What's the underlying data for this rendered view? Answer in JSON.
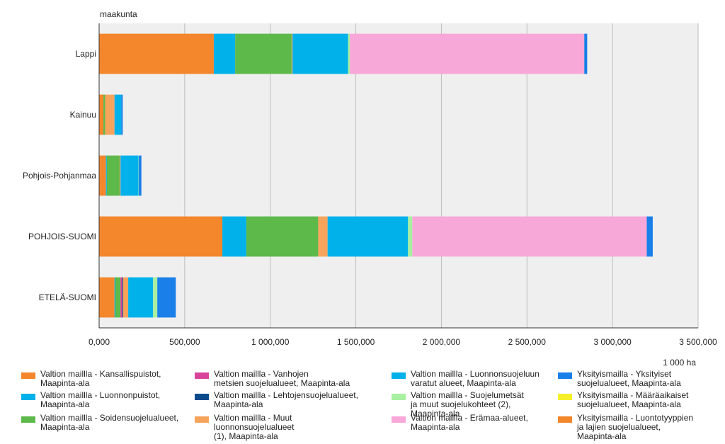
{
  "chart_data": {
    "type": "bar",
    "orientation": "horizontal",
    "stacked": true,
    "title": "",
    "ylabel": "maakunta",
    "xlabel": "1 000 ha",
    "xlim": [
      0,
      3500000
    ],
    "xticks": [
      0,
      500000,
      1000000,
      1500000,
      2000000,
      2500000,
      3000000,
      3500000
    ],
    "xtick_labels": [
      "0,000",
      "500,000",
      "1 000,000",
      "1 500,000",
      "2 000,000",
      "2 500,000",
      "3 000,000",
      "3 500,000"
    ],
    "grid": true,
    "legend_position": "bottom",
    "categories": [
      "Lappi",
      "Kainuu",
      "Pohjois-Pohjanmaa",
      "POHJOIS-SUOMI",
      "ETELÄ-SUOMI"
    ],
    "series": [
      {
        "name": "Valtion maillla - Kansallispuistot,\nMaapinta-ala",
        "label": "Valtion maillla - Kansallispuistot,\nMaapinta-ala",
        "color": "#f4862b",
        "values": [
          670000,
          25000,
          40000,
          720000,
          90000
        ]
      },
      {
        "name": "Valtion maillla - Luonnonpuistot,\nMaapinta-ala",
        "label": "Valtion maillla - Luonnonpuistot,\nMaapinta-ala",
        "color": "#00b1ea",
        "values": [
          125000,
          0,
          5000,
          140000,
          5000
        ]
      },
      {
        "name": "Valtion maillla - Soidensuojelualueet,\nMaapinta-ala",
        "label": "Valtion maillla - Soidensuojelualueet,\nMaapinta-ala",
        "color": "#5cb94a",
        "values": [
          330000,
          10000,
          75000,
          420000,
          30000
        ]
      },
      {
        "name": "Valtion maillla - Vanhojen\nmetsien suojelualueet, Maapinta-ala",
        "label": "Valtion maillla - Vanhojen\nmetsien suojelualueet, Maapinta-ala",
        "color": "#d9449b",
        "values": [
          0,
          0,
          0,
          0,
          10000
        ]
      },
      {
        "name": "Valtion maillla - Lehtojensuojelualueet,\nMaapinta-ala",
        "label": "Valtion maillla - Lehtojensuojelualueet,\nMaapinta-ala",
        "color": "#0b4a8b",
        "values": [
          0,
          0,
          0,
          0,
          5000
        ]
      },
      {
        "name": "Valtion maillla - Muut luonnonsuojelualueet\n(1), Maapinta-ala",
        "label": "Valtion maillla - Muut luonnonsuojelualueet\n(1), Maapinta-ala",
        "color": "#f6a45c",
        "values": [
          5000,
          55000,
          5000,
          55000,
          30000
        ]
      },
      {
        "name": "Valtion  maillla - Luonnonsuojeluun\nvaratut alueet, Maapinta-ala",
        "label": "Valtion  maillla - Luonnonsuojeluun\nvaratut alueet, Maapinta-ala",
        "color": "#00b1ea",
        "values": [
          325000,
          40000,
          105000,
          470000,
          145000
        ]
      },
      {
        "name": "Valtion maillla - Suojelumetsät\nja muut suojelukohteet (2),\nMaapinta-ala",
        "label": "Valtion maillla - Suojelumetsät\nja muut suojelukohteet (2),\nMaapinta-ala",
        "color": "#a8f0a0",
        "values": [
          10000,
          0,
          2000,
          25000,
          25000
        ]
      },
      {
        "name": "Valtion maillla - Erämaa-alueet,\nMaapinta-ala",
        "label": "Valtion maillla - Erämaa-alueet,\nMaapinta-ala",
        "color": "#f7a8d8",
        "values": [
          1370000,
          0,
          0,
          1370000,
          0
        ]
      },
      {
        "name": "Yksityismailla - Yksityiset\nsuojelualueet, Maapinta-ala",
        "label": "Yksityismailla - Yksityiset\nsuojelualueet, Maapinta-ala",
        "color": "#1a7fe8",
        "values": [
          17000,
          8000,
          15000,
          35000,
          108000
        ]
      },
      {
        "name": "Yksityismailla - Määräaikaiset\nsuojelualueet, Maapinta-ala",
        "label": "Yksityismailla - Määräaikaiset\nsuojelualueet, Maapinta-ala",
        "color": "#f5ef2a",
        "values": [
          0,
          0,
          0,
          0,
          0
        ]
      },
      {
        "name": "Yksityismailla - Luontotyyppien\nja lajien suojelualueet,\nMaapinta-ala",
        "label": "Yksityismailla - Luontotyyppien\nja lajien suojelualueet,\nMaapinta-ala",
        "color": "#f4862b",
        "values": [
          0,
          0,
          0,
          0,
          0
        ]
      }
    ]
  }
}
